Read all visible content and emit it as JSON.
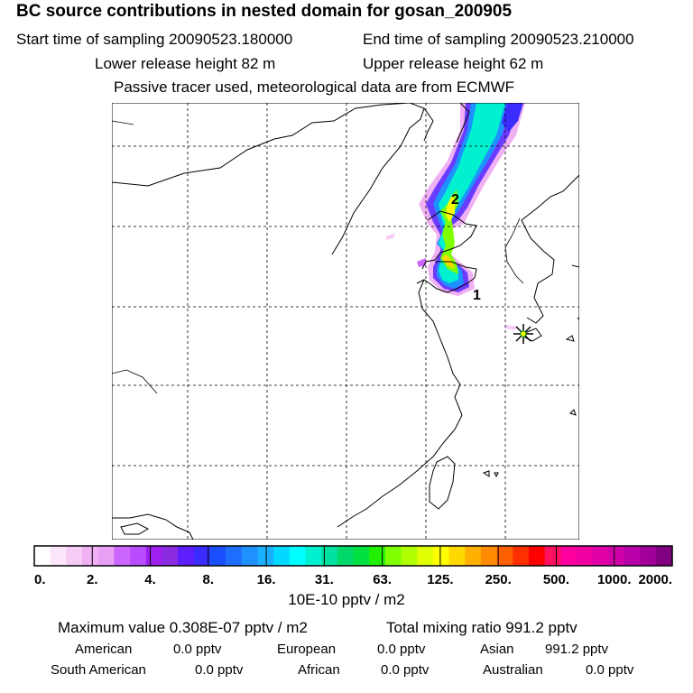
{
  "header": {
    "title": "BC  source contributions in nested domain for gosan_200905",
    "start_label": "Start time of sampling 20090523.180000",
    "end_label": "End time of sampling 20090523.210000",
    "lower_release": "Lower release height   82 m",
    "upper_release": "Upper release height   62 m",
    "tracer_note": "Passive tracer used, meteorological data are from ECMWF"
  },
  "map": {
    "markers": [
      {
        "label": "1"
      },
      {
        "label": "2"
      }
    ],
    "receptor_icon": "star-receptor-icon"
  },
  "colorbar": {
    "tick_labels": [
      "0.",
      "2.",
      "4.",
      "8.",
      "16.",
      "31.",
      "63.",
      "125.",
      "250.",
      "500.",
      "1000.",
      "2000."
    ],
    "colors": [
      "#ffffff",
      "#fbe6fb",
      "#f6ccf6",
      "#f0b0f4",
      "#e8a0f4",
      "#cc66ff",
      "#b94cff",
      "#a020f0",
      "#8a2be2",
      "#5d1fff",
      "#3a2cff",
      "#1a4fff",
      "#1e6fff",
      "#1e90ff",
      "#1ab0ff",
      "#00d8ff",
      "#00ffff",
      "#00f0d0",
      "#00e0a0",
      "#00d86a",
      "#00e040",
      "#20f000",
      "#80ff00",
      "#b0ff00",
      "#e0ff00",
      "#ffff00",
      "#ffd800",
      "#ffb000",
      "#ff8c00",
      "#ff6000",
      "#ff3000",
      "#ff0000",
      "#ff1060",
      "#ff00a0",
      "#f000a0",
      "#e000a8",
      "#d000a8",
      "#b800a8",
      "#a00098",
      "#800080"
    ],
    "units": "10E-10 pptv / m2"
  },
  "summary": {
    "max_value": "Maximum value  0.308E-07 pptv / m2",
    "total": "Total mixing ratio      991.2 pptv",
    "american_label": "American",
    "american_value": "0.0 pptv",
    "european_label": "European",
    "european_value": "0.0 pptv",
    "asian_label": "Asian",
    "asian_value": "991.2 pptv",
    "south_american_label": "South American",
    "south_american_value": "0.0 pptv",
    "african_label": "African",
    "african_value": "0.0 pptv",
    "australian_label": "Australian",
    "australian_value": "0.0 pptv"
  }
}
